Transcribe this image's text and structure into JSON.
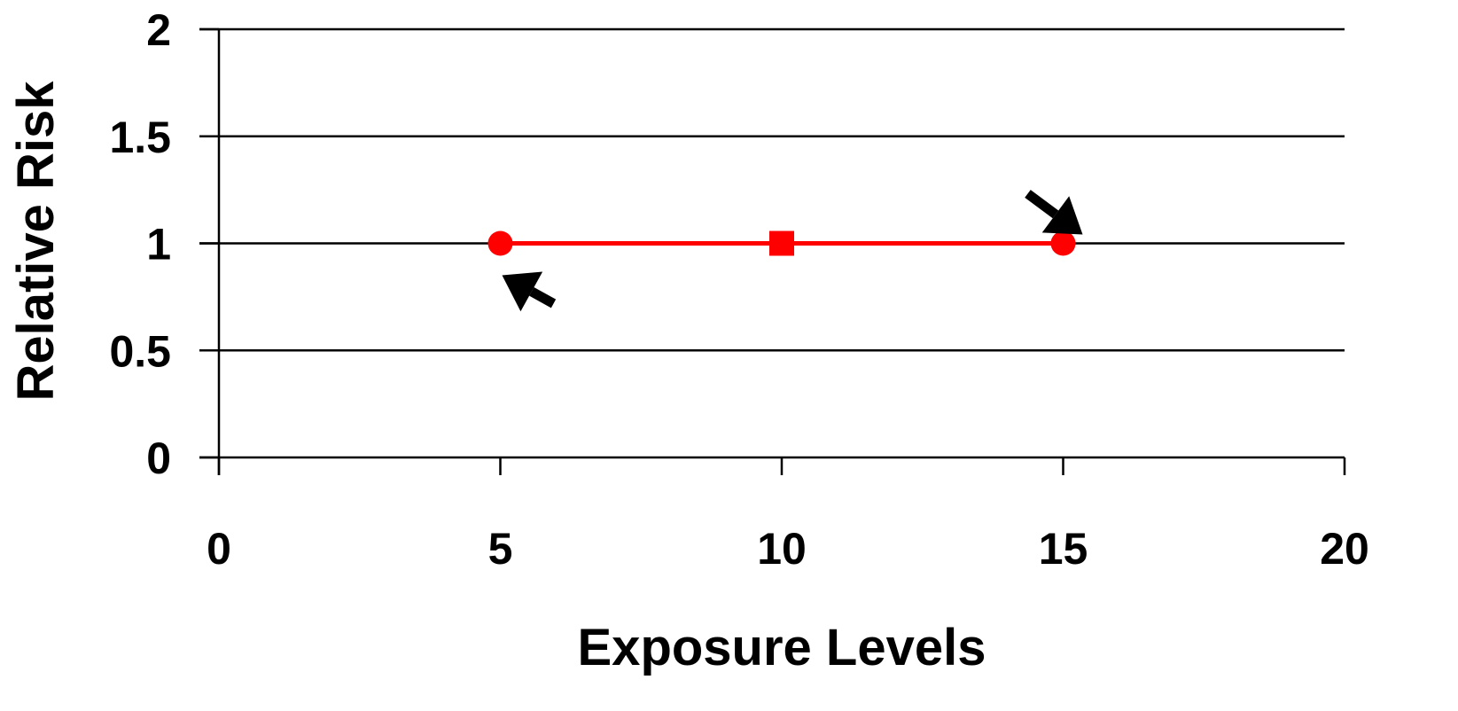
{
  "chart_data": {
    "type": "line",
    "title": "",
    "xlabel": "Exposure Levels",
    "ylabel": "Relative Risk",
    "xlim": [
      0,
      20
    ],
    "ylim": [
      0,
      2
    ],
    "x_ticks": [
      "0",
      "5",
      "10",
      "15",
      "20"
    ],
    "y_ticks": [
      "0",
      "0.5",
      "1",
      "1.5",
      "2"
    ],
    "grid": "horizontal",
    "legend": "none",
    "series": [
      {
        "color": "#ff0000",
        "points": [
          {
            "x": 5,
            "y": 1,
            "marker": "circle"
          },
          {
            "x": 10,
            "y": 1,
            "marker": "square"
          },
          {
            "x": 15,
            "y": 1,
            "marker": "circle"
          }
        ]
      }
    ],
    "annotations": [
      {
        "type": "arrow",
        "points_to": {
          "x": 5,
          "y": 1
        },
        "from": "lower-right",
        "color": "#000000"
      },
      {
        "type": "arrow",
        "points_to": {
          "x": 15,
          "y": 1
        },
        "from": "upper-left",
        "color": "#000000"
      }
    ]
  }
}
